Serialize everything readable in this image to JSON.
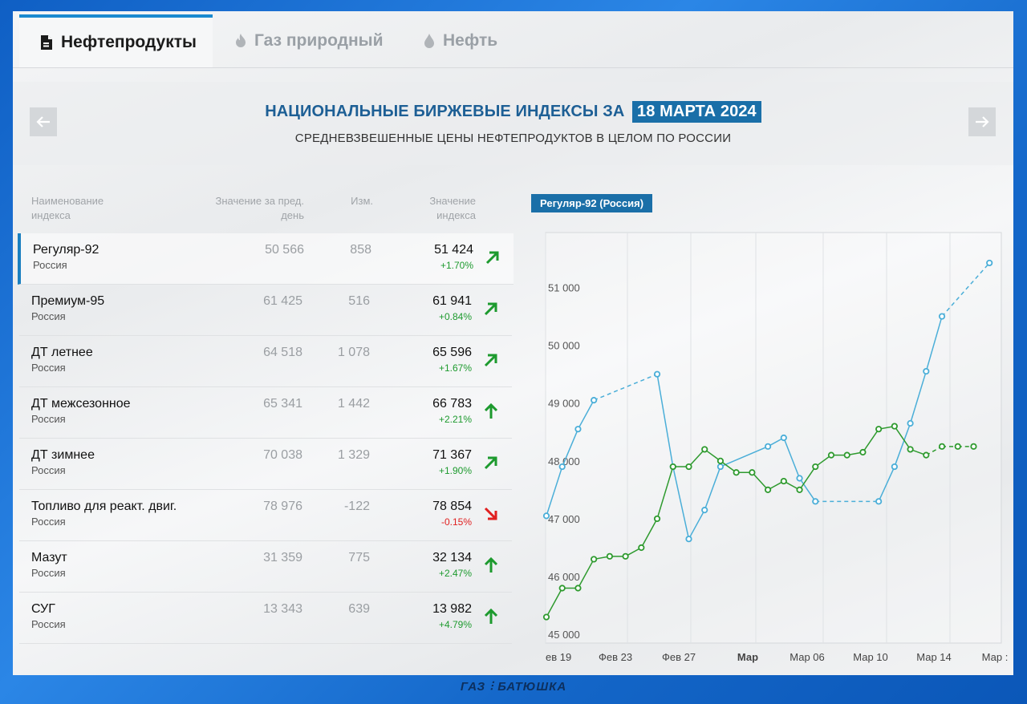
{
  "tabs": [
    {
      "label": "Нефтепродукты",
      "icon": "file-icon",
      "active": true
    },
    {
      "label": "Газ природный",
      "icon": "flame-icon",
      "active": false
    },
    {
      "label": "Нефть",
      "icon": "drop-icon",
      "active": false
    }
  ],
  "header": {
    "title": "НАЦИОНАЛЬНЫЕ БИРЖЕВЫЕ ИНДЕКСЫ ЗА",
    "date": "18 МАРТА 2024",
    "subtitle": "СРЕДНЕВЗВЕШЕННЫЕ ЦЕНЫ НЕФТЕПРОДУКТОВ В ЦЕЛОМ ПО РОССИИ",
    "prev_icon": "arrow-left-icon",
    "next_icon": "arrow-right-icon"
  },
  "table": {
    "columns": [
      "Наименование индекса",
      "Значение за пред. день",
      "Изм.",
      "Значение индекса"
    ],
    "rows": [
      {
        "name": "Регуляр-92",
        "region": "Россия",
        "prev": "50 566",
        "change": "858",
        "value": "51 424",
        "pct": "+1.70%",
        "trend": "up-right"
      },
      {
        "name": "Премиум-95",
        "region": "Россия",
        "prev": "61 425",
        "change": "516",
        "value": "61 941",
        "pct": "+0.84%",
        "trend": "up-right"
      },
      {
        "name": "ДТ летнее",
        "region": "Россия",
        "prev": "64 518",
        "change": "1 078",
        "value": "65 596",
        "pct": "+1.67%",
        "trend": "up-right"
      },
      {
        "name": "ДТ межсезонное",
        "region": "Россия",
        "prev": "65 341",
        "change": "1 442",
        "value": "66 783",
        "pct": "+2.21%",
        "trend": "up"
      },
      {
        "name": "ДТ зимнее",
        "region": "Россия",
        "prev": "70 038",
        "change": "1 329",
        "value": "71 367",
        "pct": "+1.90%",
        "trend": "up-right"
      },
      {
        "name": "Топливо для реакт. двиг.",
        "region": "Россия",
        "prev": "78 976",
        "change": "-122",
        "value": "78 854",
        "pct": "-0.15%",
        "trend": "down-right"
      },
      {
        "name": "Мазут",
        "region": "Россия",
        "prev": "31 359",
        "change": "775",
        "value": "32 134",
        "pct": "+2.47%",
        "trend": "up"
      },
      {
        "name": "СУГ",
        "region": "Россия",
        "prev": "13 343",
        "change": "639",
        "value": "13 982",
        "pct": "+4.79%",
        "trend": "up"
      }
    ]
  },
  "colors": {
    "accent": "#1a6fa8",
    "positive": "#1d9a2e",
    "negative": "#e02020",
    "series_blue": "#4aaed8",
    "series_green": "#2e9a2e"
  },
  "chart_data": {
    "type": "line",
    "title": "Регуляр-92 (Россия)",
    "x_tick_labels": [
      "ев 19",
      "Фев 23",
      "Фев 27",
      "Мар",
      "Мар 06",
      "Мар 10",
      "Мар 14",
      "Мар :"
    ],
    "y_tick_labels": [
      "45 000",
      "46 000",
      "47 000",
      "48 000",
      "49 000",
      "50 000",
      "51 000"
    ],
    "ylim": [
      44850,
      51950
    ],
    "xlim": [
      0,
      28.7
    ],
    "grid": true,
    "series": [
      {
        "color": "#4aaed8",
        "points": [
          [
            0,
            47050
          ],
          [
            1,
            47900
          ],
          [
            2,
            48550
          ],
          [
            3,
            49050
          ],
          [
            7,
            49500
          ],
          [
            8,
            47900
          ],
          [
            9,
            46650
          ],
          [
            10,
            47150
          ],
          [
            11,
            47900
          ],
          [
            14,
            48250
          ],
          [
            15,
            48400
          ],
          [
            16,
            47700
          ],
          [
            17,
            47300
          ],
          [
            21,
            47300
          ],
          [
            22,
            47900
          ],
          [
            23,
            48650
          ],
          [
            24,
            49550
          ],
          [
            25,
            50500
          ],
          [
            28,
            51424
          ]
        ],
        "dashed_segments": [
          [
            3,
            7
          ],
          [
            17,
            21
          ],
          [
            25,
            28
          ]
        ]
      },
      {
        "color": "#2e9a2e",
        "points": [
          [
            0,
            45300
          ],
          [
            1,
            45800
          ],
          [
            2,
            45800
          ],
          [
            3,
            46300
          ],
          [
            4,
            46350
          ],
          [
            5,
            46350
          ],
          [
            6,
            46500
          ],
          [
            7,
            47000
          ],
          [
            8,
            47900
          ],
          [
            9,
            47900
          ],
          [
            10,
            48200
          ],
          [
            11,
            48000
          ],
          [
            12,
            47800
          ],
          [
            13,
            47800
          ],
          [
            14,
            47500
          ],
          [
            15,
            47650
          ],
          [
            16,
            47500
          ],
          [
            17,
            47900
          ],
          [
            18,
            48100
          ],
          [
            19,
            48100
          ],
          [
            20,
            48150
          ],
          [
            21,
            48550
          ],
          [
            22,
            48600
          ],
          [
            23,
            48200
          ],
          [
            24,
            48100
          ],
          [
            25,
            48250
          ],
          [
            26,
            48250
          ],
          [
            27,
            48250
          ]
        ],
        "dashed_segments": [
          [
            24,
            27
          ]
        ]
      }
    ]
  },
  "footer": {
    "logo_text": "ГАЗ ⫶ БАТЮШКА"
  }
}
